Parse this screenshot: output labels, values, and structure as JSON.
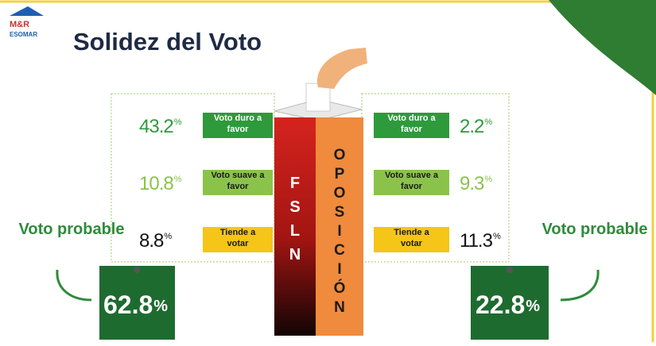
{
  "logo": {
    "name": "M&R",
    "sub": "ESOMAR"
  },
  "title": "Solidez del Voto",
  "left": {
    "party": "FSLN",
    "rows": [
      {
        "value": 43.2,
        "unit": "%",
        "label": "Voto duro a favor"
      },
      {
        "value": 10.8,
        "unit": "%",
        "label": "Voto suave a favor"
      },
      {
        "value": 8.8,
        "unit": "%",
        "label": "Tiende a votar"
      }
    ],
    "probable": {
      "label": "Voto probable",
      "value": 62.8,
      "unit": "%"
    }
  },
  "right": {
    "party": "OPOSICIÓN",
    "rows": [
      {
        "value": 2.2,
        "unit": "%",
        "label": "Voto duro a favor"
      },
      {
        "value": 9.3,
        "unit": "%",
        "label": "Voto suave a favor"
      },
      {
        "value": 11.3,
        "unit": "%",
        "label": "Tiende a votar"
      }
    ],
    "probable": {
      "label": "Voto probable",
      "value": 22.8,
      "unit": "%"
    }
  }
}
